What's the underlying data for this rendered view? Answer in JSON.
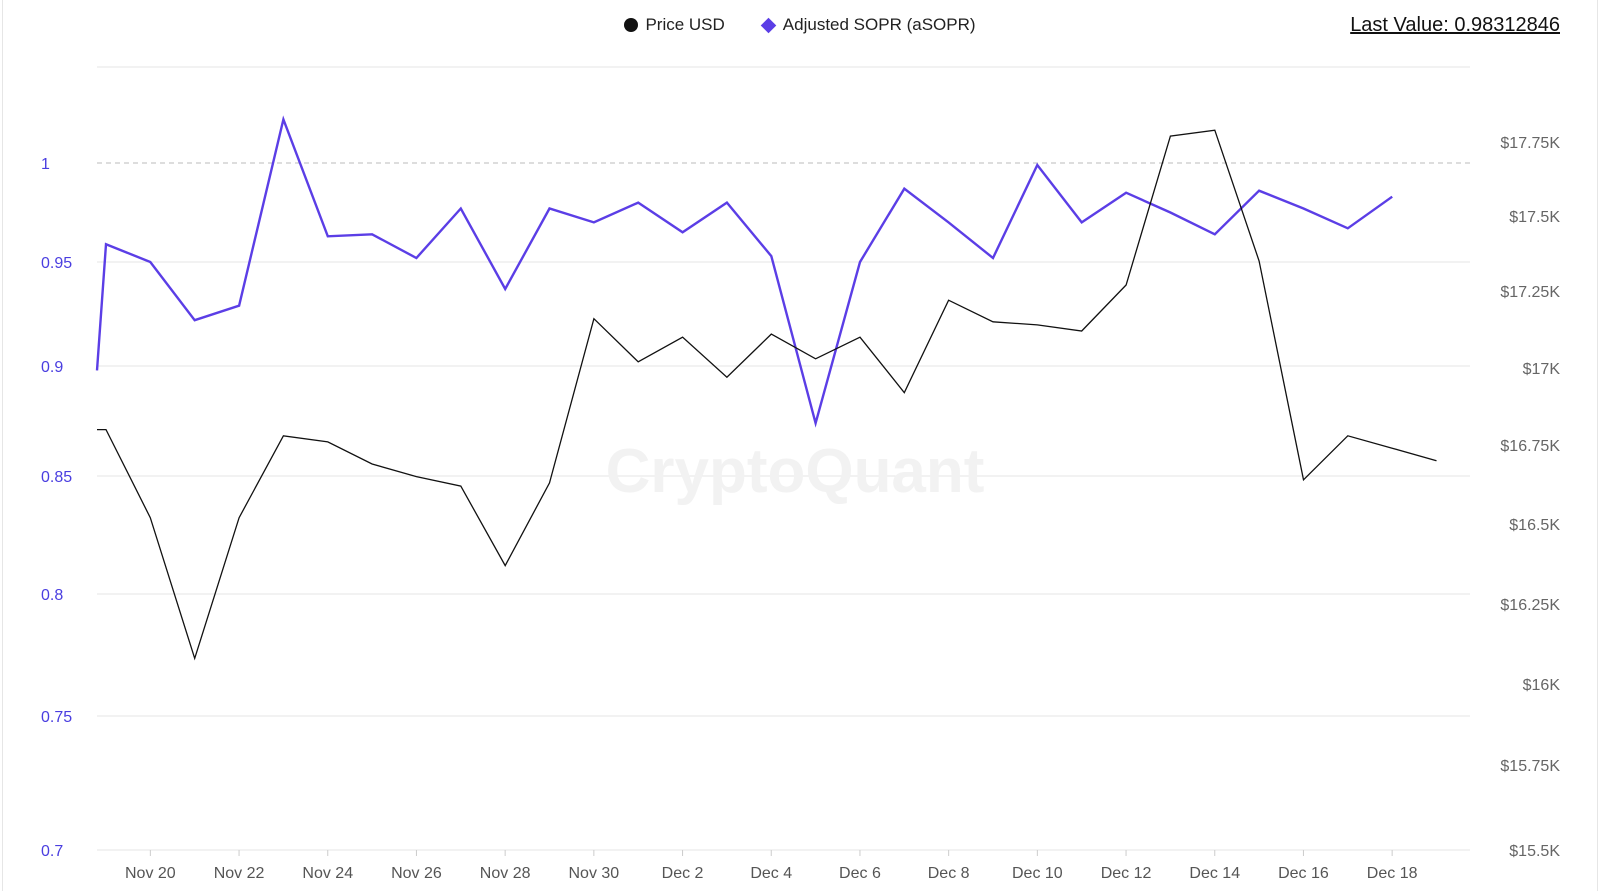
{
  "legend": {
    "price_label": "Price USD",
    "sopr_label": "Adjusted SOPR (aSOPR)"
  },
  "last_value": "Last Value: 0.98312846",
  "watermark": "CryptoQuant",
  "colors": {
    "price": "#111111",
    "sopr": "#5b3ee6"
  },
  "chart_data": {
    "type": "line",
    "x": [
      "Nov 19",
      "Nov 20",
      "Nov 21",
      "Nov 22",
      "Nov 23",
      "Nov 24",
      "Nov 25",
      "Nov 26",
      "Nov 27",
      "Nov 28",
      "Nov 29",
      "Nov 30",
      "Dec 1",
      "Dec 2",
      "Dec 3",
      "Dec 4",
      "Dec 5",
      "Dec 6",
      "Dec 7",
      "Dec 8",
      "Dec 9",
      "Dec 10",
      "Dec 11",
      "Dec 12",
      "Dec 13",
      "Dec 14",
      "Dec 15",
      "Dec 16",
      "Dec 17",
      "Dec 18",
      "Dec 19"
    ],
    "x_ticks": [
      "Nov 20",
      "Nov 22",
      "Nov 24",
      "Nov 26",
      "Nov 28",
      "Nov 30",
      "Dec 2",
      "Dec 4",
      "Dec 6",
      "Dec 8",
      "Dec 10",
      "Dec 12",
      "Dec 14",
      "Dec 16",
      "Dec 18"
    ],
    "series": [
      {
        "name": "Adjusted SOPR (aSOPR)",
        "axis": "left",
        "values": [
          0.959,
          0.95,
          0.922,
          0.929,
          1.022,
          0.963,
          0.964,
          0.952,
          0.977,
          0.937,
          0.977,
          0.97,
          0.98,
          0.965,
          0.98,
          0.953,
          0.874,
          0.95,
          0.987,
          0.97,
          0.952,
          0.999,
          0.97,
          0.985,
          0.975,
          0.964,
          0.986,
          0.977,
          0.967,
          0.983,
          null
        ]
      },
      {
        "name": "Price USD",
        "axis": "right",
        "values": [
          16800,
          16520,
          16080,
          16520,
          16780,
          16760,
          16690,
          16650,
          16620,
          16370,
          16630,
          17160,
          17020,
          17100,
          16970,
          17110,
          17030,
          17100,
          16920,
          17220,
          17150,
          17140,
          17120,
          17270,
          17770,
          17790,
          17350,
          16640,
          16780,
          16740,
          16700
        ]
      }
    ],
    "y_left": {
      "ticks": [
        "0.7",
        "0.75",
        "0.8",
        "0.85",
        "0.9",
        "0.95",
        "1"
      ],
      "reference_line": 1
    },
    "y_right": {
      "ticks": [
        "$15.5K",
        "$15.75K",
        "$16K",
        "$16.25K",
        "$16.5K",
        "$16.75K",
        "$17K",
        "$17.25K",
        "$17.5K",
        "$17.75K"
      ],
      "ylim": [
        15500,
        18000
      ]
    },
    "grid": true,
    "legend_position": "top-center"
  }
}
